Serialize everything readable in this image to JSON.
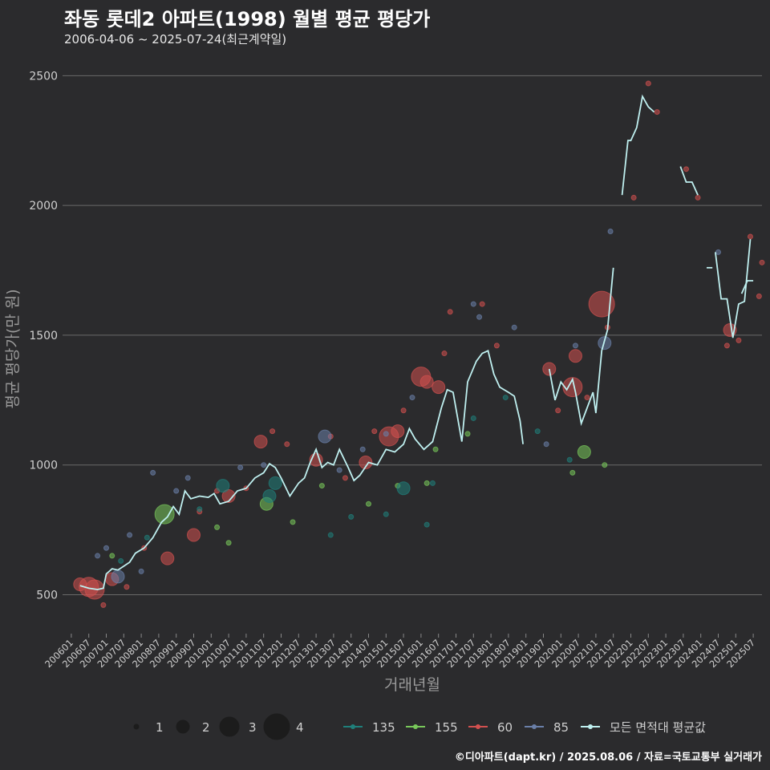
{
  "header": {
    "title": "좌동 롯데2 아파트(1998) 월별 평균 평당가",
    "subtitle": "2006-04-06 ~ 2025-07-24(최근계약일)"
  },
  "footer": "©디아파트(dapt.kr) / 2025.08.06 / 자료=국토교통부 실거래가",
  "chart_data": {
    "type": "line",
    "title": "좌동 롯데2 아파트(1998) 월별 평균 평당가",
    "xlabel": "거래년월",
    "ylabel": "평균 평당가(만 원)",
    "ylim": [
      350,
      2600
    ],
    "yticks": [
      500,
      1000,
      1500,
      2000,
      2500
    ],
    "xlim": [
      "2005-10",
      "2025-10"
    ],
    "xticks": [
      "200601",
      "200607",
      "200701",
      "200707",
      "200801",
      "200807",
      "200901",
      "200907",
      "201001",
      "201007",
      "201101",
      "201107",
      "201201",
      "201207",
      "201301",
      "201307",
      "201401",
      "201407",
      "201501",
      "201507",
      "201601",
      "201607",
      "201701",
      "201707",
      "201801",
      "201807",
      "201901",
      "201907",
      "202001",
      "202007",
      "202101",
      "202107",
      "202201",
      "202207",
      "202301",
      "202307",
      "202401",
      "202407",
      "202501",
      "202507"
    ],
    "size_legend": {
      "values": [
        "1",
        "2",
        "3",
        "4"
      ]
    },
    "color_legend": [
      {
        "name": "135",
        "color": "#1f7f7a"
      },
      {
        "name": "155",
        "color": "#78c85a"
      },
      {
        "name": "60",
        "color": "#d2504f"
      },
      {
        "name": "85",
        "color": "#6a7fa8"
      },
      {
        "name": "모든 면적대 평균값",
        "color": "#bff0f0"
      }
    ],
    "series_average": {
      "name": "모든 면적대 평균값",
      "segments": [
        [
          [
            "2006-04",
            535
          ],
          [
            "2006-07",
            525
          ],
          [
            "2006-10",
            520
          ],
          [
            "2006-12",
            525
          ],
          [
            "2007-01",
            580
          ],
          [
            "2007-03",
            600
          ],
          [
            "2007-05",
            595
          ],
          [
            "2007-07",
            610
          ],
          [
            "2007-09",
            625
          ],
          [
            "2007-11",
            660
          ],
          [
            "2008-02",
            680
          ],
          [
            "2008-05",
            720
          ],
          [
            "2008-08",
            780
          ],
          [
            "2008-10",
            800
          ],
          [
            "2008-12",
            840
          ],
          [
            "2009-02",
            810
          ],
          [
            "2009-04",
            900
          ],
          [
            "2009-06",
            870
          ],
          [
            "2009-09",
            880
          ],
          [
            "2009-12",
            875
          ],
          [
            "2010-02",
            890
          ],
          [
            "2010-04",
            850
          ],
          [
            "2010-07",
            860
          ],
          [
            "2010-10",
            900
          ],
          [
            "2011-01",
            910
          ],
          [
            "2011-04",
            950
          ],
          [
            "2011-07",
            970
          ],
          [
            "2011-09",
            1005
          ],
          [
            "2011-11",
            990
          ],
          [
            "2012-01",
            950
          ],
          [
            "2012-04",
            880
          ],
          [
            "2012-07",
            930
          ],
          [
            "2012-09",
            950
          ],
          [
            "2012-11",
            1010
          ],
          [
            "2013-01",
            1060
          ],
          [
            "2013-03",
            990
          ],
          [
            "2013-05",
            1010
          ],
          [
            "2013-07",
            1000
          ],
          [
            "2013-09",
            1060
          ],
          [
            "2013-12",
            990
          ],
          [
            "2014-02",
            940
          ],
          [
            "2014-04",
            960
          ],
          [
            "2014-07",
            1010
          ],
          [
            "2014-10",
            1000
          ],
          [
            "2015-01",
            1060
          ],
          [
            "2015-04",
            1050
          ],
          [
            "2015-07",
            1080
          ],
          [
            "2015-09",
            1140
          ],
          [
            "2015-11",
            1100
          ],
          [
            "2016-02",
            1060
          ],
          [
            "2016-05",
            1090
          ],
          [
            "2016-08",
            1220
          ],
          [
            "2016-10",
            1290
          ],
          [
            "2016-12",
            1280
          ],
          [
            "2017-03",
            1090
          ],
          [
            "2017-05",
            1320
          ],
          [
            "2017-08",
            1400
          ],
          [
            "2017-10",
            1430
          ],
          [
            "2017-12",
            1440
          ],
          [
            "2018-02",
            1350
          ],
          [
            "2018-04",
            1300
          ],
          [
            "2018-07",
            1280
          ],
          [
            "2018-09",
            1265
          ],
          [
            "2018-11",
            1170
          ],
          [
            "2018-12",
            1080
          ]
        ],
        [
          [
            "2019-09",
            1370
          ],
          [
            "2019-11",
            1250
          ],
          [
            "2020-01",
            1320
          ],
          [
            "2020-03",
            1290
          ],
          [
            "2020-05",
            1330
          ],
          [
            "2020-06",
            1280
          ],
          [
            "2020-08",
            1160
          ],
          [
            "2020-10",
            1220
          ],
          [
            "2020-12",
            1280
          ],
          [
            "2021-01",
            1200
          ],
          [
            "2021-03",
            1440
          ],
          [
            "2021-05",
            1520
          ],
          [
            "2021-07",
            1760
          ]
        ],
        [
          [
            "2021-10",
            2040
          ],
          [
            "2021-12",
            2250
          ],
          [
            "2022-01",
            2250
          ],
          [
            "2022-03",
            2300
          ],
          [
            "2022-05",
            2420
          ],
          [
            "2022-07",
            2380
          ],
          [
            "2022-09",
            2360
          ]
        ],
        [
          [
            "2023-06",
            2150
          ],
          [
            "2023-08",
            2090
          ],
          [
            "2023-10",
            2090
          ],
          [
            "2023-12",
            2040
          ]
        ],
        [
          [
            "2024-03",
            1760
          ],
          [
            "2024-05",
            1760
          ]
        ],
        [
          [
            "2024-06",
            1820
          ],
          [
            "2024-08",
            1640
          ],
          [
            "2024-10",
            1640
          ],
          [
            "2024-12",
            1490
          ],
          [
            "2025-02",
            1620
          ],
          [
            "2025-04",
            1630
          ],
          [
            "2025-06",
            1870
          ]
        ],
        [
          [
            "2025-03",
            1660
          ],
          [
            "2025-05",
            1710
          ],
          [
            "2025-07",
            1710
          ]
        ]
      ]
    },
    "series_points": [
      {
        "name": "60",
        "points": [
          [
            "2006-04",
            540,
            2
          ],
          [
            "2006-07",
            530,
            3
          ],
          [
            "2006-09",
            520,
            3
          ],
          [
            "2006-12",
            460,
            1
          ],
          [
            "2007-03",
            560,
            2
          ],
          [
            "2007-08",
            530,
            1
          ],
          [
            "2008-02",
            680,
            1
          ],
          [
            "2008-10",
            640,
            2
          ],
          [
            "2009-07",
            730,
            2
          ],
          [
            "2009-09",
            820,
            1
          ],
          [
            "2010-03",
            900,
            1
          ],
          [
            "2010-07",
            880,
            2
          ],
          [
            "2011-01",
            910,
            1
          ],
          [
            "2011-06",
            1090,
            2
          ],
          [
            "2011-10",
            1130,
            1
          ],
          [
            "2012-03",
            1080,
            1
          ],
          [
            "2013-01",
            1020,
            2
          ],
          [
            "2013-06",
            1110,
            1
          ],
          [
            "2013-11",
            950,
            1
          ],
          [
            "2014-06",
            1010,
            2
          ],
          [
            "2014-09",
            1130,
            1
          ],
          [
            "2015-02",
            1110,
            3
          ],
          [
            "2015-05",
            1130,
            2
          ],
          [
            "2015-07",
            1210,
            1
          ],
          [
            "2016-01",
            1340,
            3
          ],
          [
            "2016-03",
            1320,
            2
          ],
          [
            "2016-07",
            1300,
            2
          ],
          [
            "2016-09",
            1430,
            1
          ],
          [
            "2016-11",
            1590,
            1
          ],
          [
            "2017-10",
            1620,
            1
          ],
          [
            "2018-03",
            1460,
            1
          ],
          [
            "2019-09",
            1370,
            2
          ],
          [
            "2019-12",
            1210,
            1
          ],
          [
            "2020-05",
            1300,
            3
          ],
          [
            "2020-06",
            1420,
            2
          ],
          [
            "2020-10",
            1260,
            1
          ],
          [
            "2021-03",
            1620,
            4
          ],
          [
            "2021-05",
            1530,
            1
          ],
          [
            "2022-02",
            2030,
            1
          ],
          [
            "2022-07",
            2470,
            1
          ],
          [
            "2022-10",
            2360,
            1
          ],
          [
            "2023-08",
            2140,
            1
          ],
          [
            "2023-12",
            2030,
            1
          ],
          [
            "2024-10",
            1460,
            1
          ],
          [
            "2024-11",
            1520,
            2
          ],
          [
            "2025-02",
            1480,
            1
          ],
          [
            "2025-06",
            1880,
            1
          ],
          [
            "2025-09",
            1650,
            1
          ],
          [
            "2025-10",
            1780,
            1
          ]
        ]
      },
      {
        "name": "155",
        "points": [
          [
            "2007-03",
            650,
            1
          ],
          [
            "2008-09",
            810,
            3
          ],
          [
            "2010-03",
            760,
            1
          ],
          [
            "2010-07",
            700,
            1
          ],
          [
            "2011-08",
            850,
            2
          ],
          [
            "2012-05",
            780,
            1
          ],
          [
            "2013-03",
            920,
            1
          ],
          [
            "2014-07",
            850,
            1
          ],
          [
            "2015-05",
            920,
            1
          ],
          [
            "2016-03",
            930,
            1
          ],
          [
            "2016-06",
            1060,
            1
          ],
          [
            "2017-05",
            1120,
            1
          ],
          [
            "2020-05",
            970,
            1
          ],
          [
            "2020-09",
            1050,
            2
          ],
          [
            "2021-04",
            1000,
            1
          ]
        ]
      },
      {
        "name": "135",
        "points": [
          [
            "2007-06",
            630,
            1
          ],
          [
            "2008-03",
            720,
            1
          ],
          [
            "2009-09",
            830,
            1
          ],
          [
            "2010-05",
            920,
            2
          ],
          [
            "2011-09",
            880,
            2
          ],
          [
            "2011-11",
            930,
            2
          ],
          [
            "2013-06",
            730,
            1
          ],
          [
            "2014-01",
            800,
            1
          ],
          [
            "2015-01",
            810,
            1
          ],
          [
            "2015-07",
            910,
            2
          ],
          [
            "2016-03",
            770,
            1
          ],
          [
            "2016-05",
            930,
            1
          ],
          [
            "2017-07",
            1180,
            1
          ],
          [
            "2018-06",
            1260,
            1
          ],
          [
            "2019-05",
            1130,
            1
          ],
          [
            "2020-04",
            1020,
            1
          ]
        ]
      },
      {
        "name": "85",
        "points": [
          [
            "2006-10",
            650,
            1
          ],
          [
            "2007-01",
            680,
            1
          ],
          [
            "2007-05",
            570,
            2
          ],
          [
            "2007-09",
            730,
            1
          ],
          [
            "2008-01",
            590,
            1
          ],
          [
            "2008-05",
            970,
            1
          ],
          [
            "2009-01",
            900,
            1
          ],
          [
            "2009-05",
            950,
            1
          ],
          [
            "2010-11",
            990,
            1
          ],
          [
            "2011-07",
            1000,
            1
          ],
          [
            "2013-04",
            1110,
            2
          ],
          [
            "2013-09",
            980,
            1
          ],
          [
            "2014-05",
            1060,
            1
          ],
          [
            "2015-01",
            1120,
            1
          ],
          [
            "2015-10",
            1260,
            1
          ],
          [
            "2017-07",
            1620,
            1
          ],
          [
            "2017-09",
            1570,
            1
          ],
          [
            "2018-09",
            1530,
            1
          ],
          [
            "2019-08",
            1080,
            1
          ],
          [
            "2020-06",
            1460,
            1
          ],
          [
            "2021-04",
            1470,
            2
          ],
          [
            "2021-06",
            1900,
            1
          ],
          [
            "2024-07",
            1820,
            1
          ]
        ]
      }
    ]
  }
}
